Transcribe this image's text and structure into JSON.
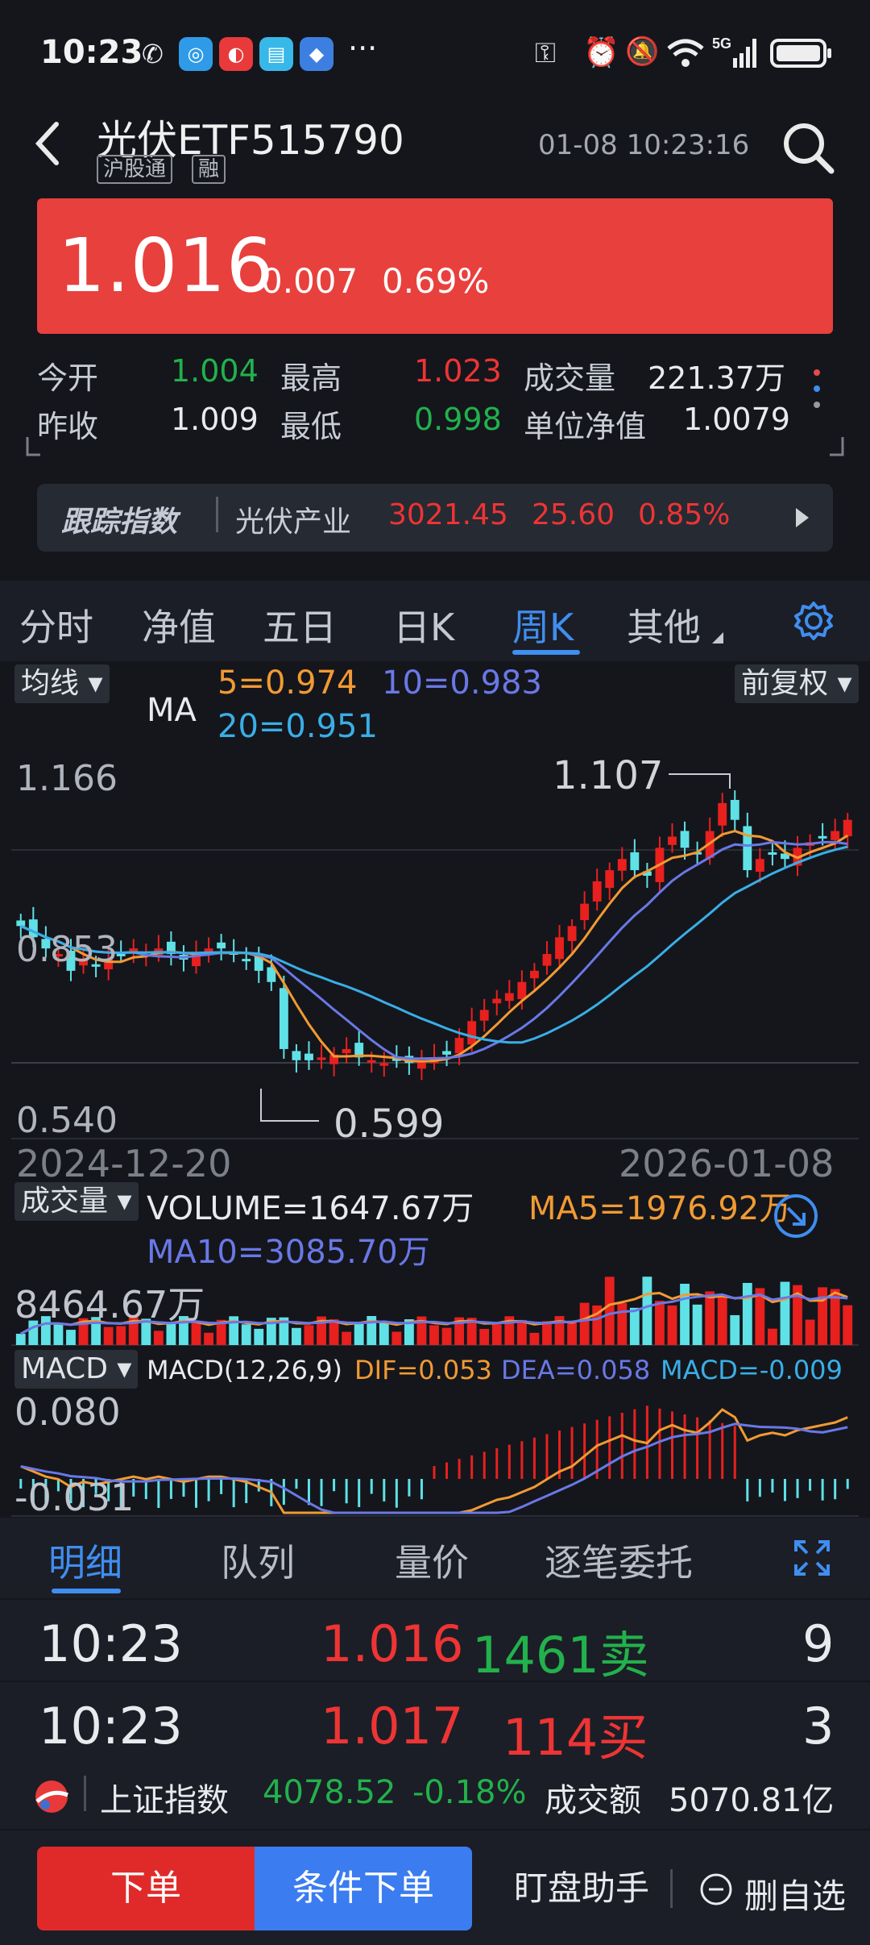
{
  "status": {
    "time": "10:23",
    "more": "···"
  },
  "header": {
    "title": "光伏ETF515790",
    "tags": [
      "沪股通",
      "融"
    ],
    "datetime": "01-08 10:23:16"
  },
  "price": {
    "current": "1.016",
    "change": "0.007",
    "change_pct": "0.69%"
  },
  "quote": {
    "open_label": "今开",
    "open": "1.004",
    "high_label": "最高",
    "high": "1.023",
    "volume_label": "成交量",
    "volume": "221.37万",
    "prev_label": "昨收",
    "prev": "1.009",
    "low_label": "最低",
    "low": "0.998",
    "nav_label": "单位净值",
    "nav": "1.0079"
  },
  "tracking": {
    "badge": "跟踪指数",
    "name": "光伏产业",
    "value": "3021.45",
    "change": "25.60",
    "pct": "0.85%"
  },
  "tabs": [
    "分时",
    "净值",
    "五日",
    "日K",
    "周K",
    "其他"
  ],
  "active_tab": "周K",
  "chart": {
    "ma_dropdown": "均线",
    "ma_label": "MA",
    "ma5": "5=0.974",
    "ma10": "10=0.983",
    "ma20": "20=0.951",
    "adjust": "前复权",
    "y_high": "1.166",
    "y_mid": "0.853",
    "y_low": "0.540",
    "max_note": "1.107",
    "min_note": "0.599",
    "date_start": "2024-12-20",
    "date_end": "2026-01-08",
    "vol_dropdown": "成交量",
    "vol_text": "VOLUME=1647.67万",
    "vol_ma5": "MA5=1976.92万",
    "vol_ma10": "MA10=3085.70万",
    "vol_max": "8464.67万",
    "macd_dropdown": "MACD",
    "macd_params": "MACD(12,26,9)",
    "dif": "DIF=0.053",
    "dea": "DEA=0.058",
    "macd_val": "MACD=-0.009",
    "macd_high": "0.080",
    "macd_low": "-0.031",
    "colors": {
      "up": "#e8201e",
      "down": "#5fe1e6",
      "ma5": "#f29a33",
      "ma10": "#6a78e6",
      "ma20": "#3aaee6"
    }
  },
  "subtabs": [
    "明细",
    "队列",
    "量价",
    "逐笔委托"
  ],
  "trades": [
    {
      "time": "10:23",
      "price": "1.016",
      "qty": "1461卖",
      "count": "9"
    },
    {
      "time": "10:23",
      "price": "1.017",
      "qty": "114买",
      "count": "3"
    }
  ],
  "ticker": {
    "name": "上证指数",
    "value": "4078.52",
    "pct": "-0.18%",
    "amount_label": "成交额",
    "amount": "5070.81亿"
  },
  "bottom": {
    "order": "下单",
    "cond_order": "条件下单",
    "assistant": "盯盘助手",
    "remove": "删自选"
  }
}
